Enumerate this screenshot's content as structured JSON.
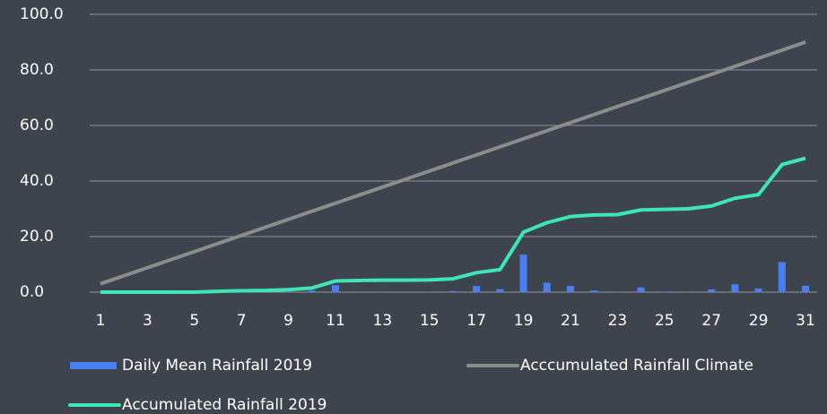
{
  "chart_data": {
    "type": "line",
    "categories": [
      1,
      null,
      3,
      null,
      5,
      null,
      7,
      null,
      9,
      null,
      11,
      null,
      13,
      null,
      15,
      null,
      17,
      null,
      19,
      null,
      21,
      null,
      23,
      null,
      25,
      null,
      27,
      null,
      29,
      null,
      31
    ],
    "series": [
      {
        "name": "Daily Mean Rainfall 2019",
        "type": "bar",
        "color": "#4a7ff2",
        "values": [
          0,
          0,
          0,
          0,
          0,
          0.3,
          0.2,
          0.1,
          0.3,
          0.6,
          2.5,
          0.2,
          0.1,
          0,
          0.1,
          0.4,
          2.2,
          1.1,
          13.5,
          3.4,
          2.2,
          0.6,
          0.1,
          1.7,
          0.2,
          0.2,
          1,
          2.8,
          1.3,
          10.8,
          2.3
        ]
      },
      {
        "name": "Acccumulated Rainfall Climate",
        "type": "line",
        "color": "#8c8c8c",
        "values": [
          3,
          5.9,
          8.8,
          11.7,
          14.6,
          17.5,
          20.4,
          23.3,
          26.2,
          29.1,
          32,
          34.9,
          37.8,
          40.7,
          43.6,
          46.5,
          49.4,
          52.3,
          55.2,
          58.1,
          61,
          63.9,
          66.8,
          69.7,
          72.6,
          75.5,
          78.4,
          81.3,
          84.2,
          87.1,
          90
        ]
      },
      {
        "name": "Accumulated Rainfall 2019",
        "type": "line",
        "color": "#3ee6b4",
        "values": [
          0,
          0,
          0,
          0,
          0,
          0.3,
          0.5,
          0.6,
          0.9,
          1.5,
          4,
          4.2,
          4.3,
          4.3,
          4.4,
          4.8,
          7,
          8.1,
          21.6,
          25,
          27.2,
          27.8,
          27.9,
          29.6,
          29.8,
          30,
          31,
          33.8,
          35.1,
          45.9,
          48.2
        ]
      }
    ],
    "ylim": [
      0,
      100
    ],
    "yticks": [
      {
        "value": 0,
        "label": "0.0"
      },
      {
        "value": 20,
        "label": "20.0"
      },
      {
        "value": 40,
        "label": "40.0"
      },
      {
        "value": 60,
        "label": "60.0"
      },
      {
        "value": 80,
        "label": "80.0"
      },
      {
        "value": 100,
        "label": "100.0"
      }
    ],
    "grid": true,
    "legend": "bottom"
  }
}
